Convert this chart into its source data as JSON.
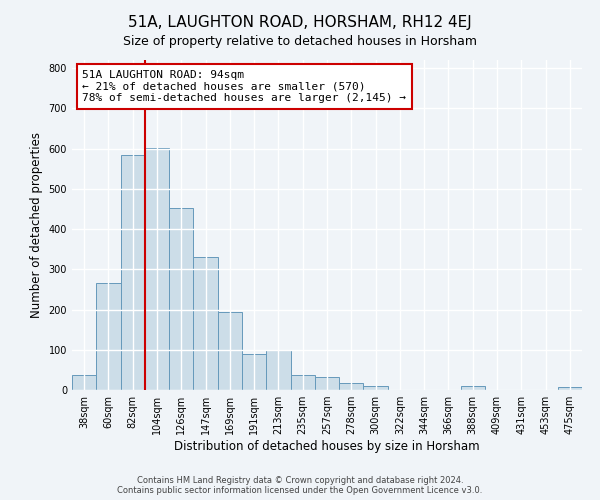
{
  "title": "51A, LAUGHTON ROAD, HORSHAM, RH12 4EJ",
  "subtitle": "Size of property relative to detached houses in Horsham",
  "xlabel": "Distribution of detached houses by size in Horsham",
  "ylabel": "Number of detached properties",
  "categories": [
    "38sqm",
    "60sqm",
    "82sqm",
    "104sqm",
    "126sqm",
    "147sqm",
    "169sqm",
    "191sqm",
    "213sqm",
    "235sqm",
    "257sqm",
    "278sqm",
    "300sqm",
    "322sqm",
    "344sqm",
    "366sqm",
    "388sqm",
    "409sqm",
    "431sqm",
    "453sqm",
    "475sqm"
  ],
  "values": [
    38,
    265,
    583,
    602,
    452,
    330,
    195,
    90,
    100,
    38,
    32,
    18,
    10,
    0,
    0,
    0,
    10,
    0,
    0,
    0,
    8
  ],
  "bar_color": "#ccdde8",
  "bar_edge_color": "#6699bb",
  "vline_x_index": 3,
  "vline_color": "#cc0000",
  "annotation_line1": "51A LAUGHTON ROAD: 94sqm",
  "annotation_line2": "← 21% of detached houses are smaller (570)",
  "annotation_line3": "78% of semi-detached houses are larger (2,145) →",
  "box_facecolor": "white",
  "box_edgecolor": "#cc0000",
  "ylim": [
    0,
    820
  ],
  "yticks": [
    0,
    100,
    200,
    300,
    400,
    500,
    600,
    700,
    800
  ],
  "footer_line1": "Contains HM Land Registry data © Crown copyright and database right 2024.",
  "footer_line2": "Contains public sector information licensed under the Open Government Licence v3.0.",
  "background_color": "#f0f4f8",
  "title_fontsize": 11,
  "tick_fontsize": 7,
  "label_fontsize": 8.5,
  "annotation_fontsize": 8,
  "footer_fontsize": 6
}
